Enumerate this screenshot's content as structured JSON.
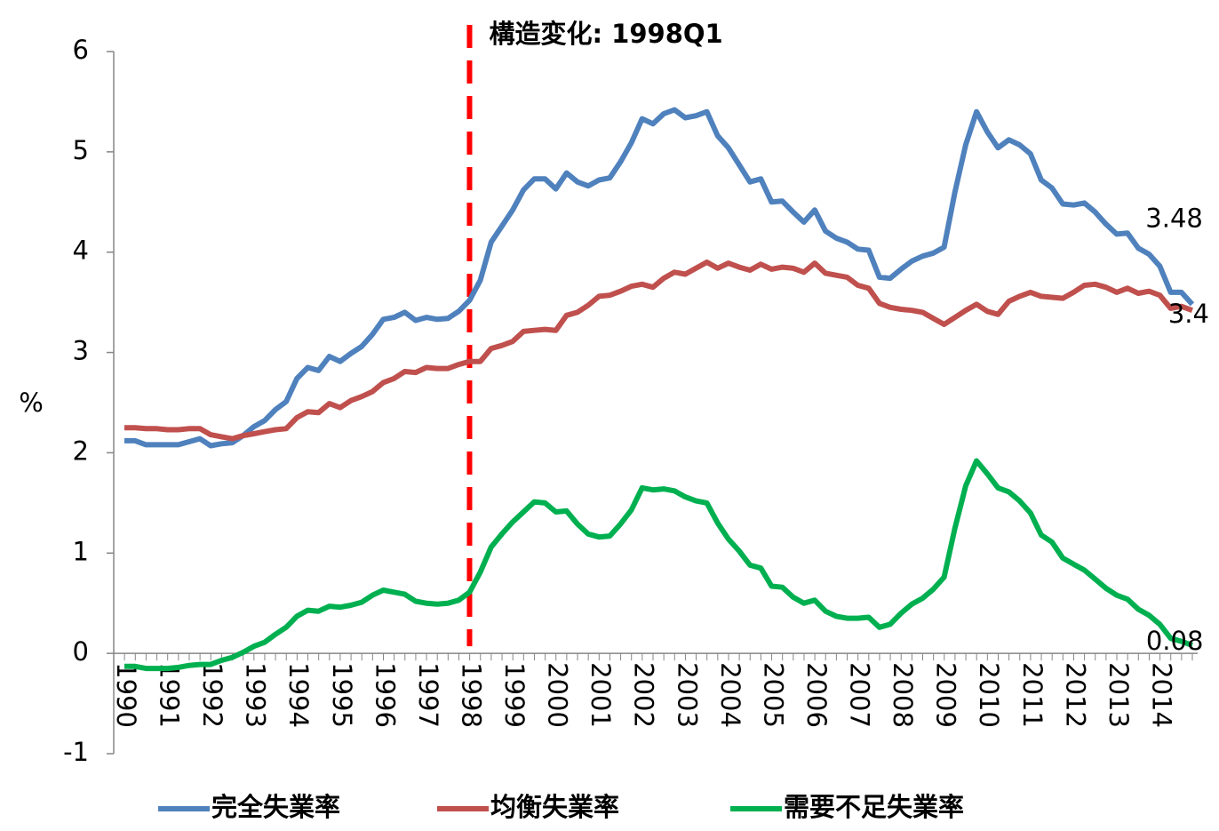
{
  "chart_data": {
    "type": "line",
    "annotation": {
      "text": "構造変化: 1998Q1",
      "category": "1998",
      "color": "#ff0000"
    },
    "ylabel": "%",
    "ylim": [
      -1,
      6
    ],
    "yticks": [
      -1,
      0,
      1,
      2,
      3,
      4,
      5,
      6
    ],
    "grid": false,
    "legend": "bottom",
    "categories": [
      "1990",
      null,
      null,
      null,
      "1991",
      null,
      null,
      null,
      "1992",
      null,
      null,
      null,
      "1993",
      null,
      null,
      null,
      "1994",
      null,
      null,
      null,
      "1995",
      null,
      null,
      null,
      "1996",
      null,
      null,
      null,
      "1997",
      null,
      null,
      null,
      "1998",
      null,
      null,
      null,
      "1999",
      null,
      null,
      null,
      "2000",
      null,
      null,
      null,
      "2001",
      null,
      null,
      null,
      "2002",
      null,
      null,
      null,
      "2003",
      null,
      null,
      null,
      "2004",
      null,
      null,
      null,
      "2005",
      null,
      null,
      null,
      "2006",
      null,
      null,
      null,
      "2007",
      null,
      null,
      null,
      "2008",
      null,
      null,
      null,
      "2009",
      null,
      null,
      null,
      "2010",
      null,
      null,
      null,
      "2011",
      null,
      null,
      null,
      "2012",
      null,
      null,
      null,
      "2013",
      null,
      null,
      null,
      "2014",
      null,
      null,
      null
    ],
    "series": [
      {
        "name": "完全失業率",
        "color": "#4f81bd",
        "label_color": "#4f81bd",
        "values": [
          2.12,
          2.12,
          2.08,
          2.08,
          2.08,
          2.08,
          2.11,
          2.14,
          2.07,
          2.09,
          2.1,
          2.17,
          2.26,
          2.32,
          2.43,
          2.51,
          2.74,
          2.85,
          2.82,
          2.96,
          2.91,
          2.99,
          3.06,
          3.18,
          3.33,
          3.35,
          3.4,
          3.32,
          3.35,
          3.33,
          3.34,
          3.41,
          3.52,
          3.72,
          4.1,
          4.26,
          4.42,
          4.62,
          4.73,
          4.73,
          4.63,
          4.79,
          4.7,
          4.66,
          4.72,
          4.74,
          4.9,
          5.09,
          5.33,
          5.28,
          5.38,
          5.42,
          5.34,
          5.36,
          5.4,
          5.16,
          5.04,
          4.87,
          4.7,
          4.73,
          4.5,
          4.51,
          4.4,
          4.3,
          4.42,
          4.21,
          4.14,
          4.1,
          4.03,
          4.02,
          3.75,
          3.74,
          3.83,
          3.91,
          3.96,
          3.99,
          4.05,
          4.6,
          5.07,
          5.4,
          5.2,
          5.04,
          5.12,
          5.07,
          4.98,
          4.72,
          4.64,
          4.48,
          4.47,
          4.49,
          4.4,
          4.28,
          4.18,
          4.19,
          4.04,
          3.98,
          3.86,
          3.6,
          3.6,
          3.48
        ],
        "value_labels": [
          null,
          null,
          null,
          null,
          null,
          null,
          null,
          null,
          null,
          null,
          null,
          null,
          null,
          null,
          null,
          null,
          null,
          null,
          null,
          null,
          null,
          null,
          null,
          null,
          null,
          null,
          null,
          null,
          null,
          null,
          null,
          null,
          null,
          null,
          null,
          null,
          null,
          null,
          null,
          null,
          null,
          null,
          null,
          null,
          null,
          null,
          null,
          null,
          null,
          null,
          null,
          null,
          null,
          null,
          null,
          null,
          null,
          null,
          null,
          null,
          null,
          null,
          null,
          null,
          null,
          null,
          null,
          null,
          null,
          null,
          null,
          null,
          null,
          null,
          null,
          null,
          null,
          null,
          null,
          null,
          null,
          null,
          null,
          null,
          null,
          null,
          null,
          null,
          null,
          null,
          null,
          null,
          null,
          null,
          null,
          null,
          null,
          null,
          null,
          "3.48"
        ]
      },
      {
        "name": "均衡失業率",
        "color": "#c0504d",
        "label_color": "#000000",
        "values": [
          2.25,
          2.25,
          2.24,
          2.24,
          2.23,
          2.23,
          2.24,
          2.24,
          2.18,
          2.16,
          2.14,
          2.17,
          2.19,
          2.21,
          2.23,
          2.24,
          2.35,
          2.41,
          2.4,
          2.49,
          2.45,
          2.52,
          2.56,
          2.61,
          2.7,
          2.74,
          2.81,
          2.8,
          2.85,
          2.84,
          2.84,
          2.88,
          2.91,
          2.91,
          3.04,
          3.07,
          3.11,
          3.21,
          3.22,
          3.23,
          3.22,
          3.37,
          3.4,
          3.47,
          3.56,
          3.57,
          3.61,
          3.66,
          3.68,
          3.65,
          3.74,
          3.8,
          3.78,
          3.84,
          3.9,
          3.84,
          3.89,
          3.85,
          3.82,
          3.88,
          3.83,
          3.85,
          3.84,
          3.8,
          3.89,
          3.79,
          3.77,
          3.75,
          3.67,
          3.64,
          3.49,
          3.45,
          3.43,
          3.42,
          3.4,
          3.34,
          3.28,
          3.35,
          3.42,
          3.48,
          3.41,
          3.38,
          3.51,
          3.56,
          3.6,
          3.56,
          3.55,
          3.54,
          3.6,
          3.67,
          3.68,
          3.65,
          3.6,
          3.64,
          3.59,
          3.61,
          3.57,
          3.44,
          3.46,
          3.42
        ],
        "value_labels": [
          null,
          null,
          null,
          null,
          null,
          null,
          null,
          null,
          null,
          null,
          null,
          null,
          null,
          null,
          null,
          null,
          null,
          null,
          null,
          null,
          null,
          null,
          null,
          null,
          null,
          null,
          null,
          null,
          null,
          null,
          null,
          null,
          null,
          null,
          null,
          null,
          null,
          null,
          null,
          null,
          null,
          null,
          null,
          null,
          null,
          null,
          null,
          null,
          null,
          null,
          null,
          null,
          null,
          null,
          null,
          null,
          null,
          null,
          null,
          null,
          null,
          null,
          null,
          null,
          null,
          null,
          null,
          null,
          null,
          null,
          null,
          null,
          null,
          null,
          null,
          null,
          null,
          null,
          null,
          null,
          null,
          null,
          null,
          null,
          null,
          null,
          null,
          null,
          null,
          null,
          null,
          null,
          null,
          null,
          null,
          null,
          null,
          null,
          null,
          "3.4"
        ]
      },
      {
        "name": "需要不足失業率",
        "color": "#00b050",
        "label_color": "#000000",
        "values": [
          -0.13,
          -0.13,
          -0.15,
          -0.15,
          -0.15,
          -0.14,
          -0.12,
          -0.11,
          -0.11,
          -0.07,
          -0.04,
          0.01,
          0.07,
          0.11,
          0.19,
          0.26,
          0.37,
          0.43,
          0.42,
          0.47,
          0.46,
          0.48,
          0.51,
          0.58,
          0.63,
          0.61,
          0.59,
          0.52,
          0.5,
          0.49,
          0.5,
          0.53,
          0.61,
          0.81,
          1.06,
          1.19,
          1.31,
          1.41,
          1.51,
          1.5,
          1.41,
          1.42,
          1.29,
          1.19,
          1.16,
          1.17,
          1.29,
          1.43,
          1.65,
          1.63,
          1.64,
          1.62,
          1.56,
          1.52,
          1.5,
          1.3,
          1.14,
          1.02,
          0.88,
          0.85,
          0.67,
          0.66,
          0.56,
          0.5,
          0.53,
          0.42,
          0.37,
          0.35,
          0.35,
          0.36,
          0.26,
          0.29,
          0.4,
          0.49,
          0.55,
          0.64,
          0.76,
          1.25,
          1.67,
          1.92,
          1.79,
          1.65,
          1.61,
          1.52,
          1.4,
          1.18,
          1.11,
          0.95,
          0.89,
          0.83,
          0.74,
          0.65,
          0.58,
          0.54,
          0.44,
          0.38,
          0.29,
          0.15,
          0.12,
          0.08
        ],
        "value_labels": [
          null,
          null,
          null,
          null,
          null,
          null,
          null,
          null,
          null,
          null,
          null,
          null,
          null,
          null,
          null,
          null,
          null,
          null,
          null,
          null,
          null,
          null,
          null,
          null,
          null,
          null,
          null,
          null,
          null,
          null,
          null,
          null,
          null,
          null,
          null,
          null,
          null,
          null,
          null,
          null,
          null,
          null,
          null,
          null,
          null,
          null,
          null,
          null,
          null,
          null,
          null,
          null,
          null,
          null,
          null,
          null,
          null,
          null,
          null,
          null,
          null,
          null,
          null,
          null,
          null,
          null,
          null,
          null,
          null,
          null,
          null,
          null,
          null,
          null,
          null,
          null,
          null,
          null,
          null,
          null,
          null,
          null,
          null,
          null,
          null,
          null,
          null,
          null,
          null,
          null,
          null,
          null,
          null,
          null,
          null,
          null,
          null,
          null,
          null,
          "0.08"
        ]
      }
    ]
  }
}
